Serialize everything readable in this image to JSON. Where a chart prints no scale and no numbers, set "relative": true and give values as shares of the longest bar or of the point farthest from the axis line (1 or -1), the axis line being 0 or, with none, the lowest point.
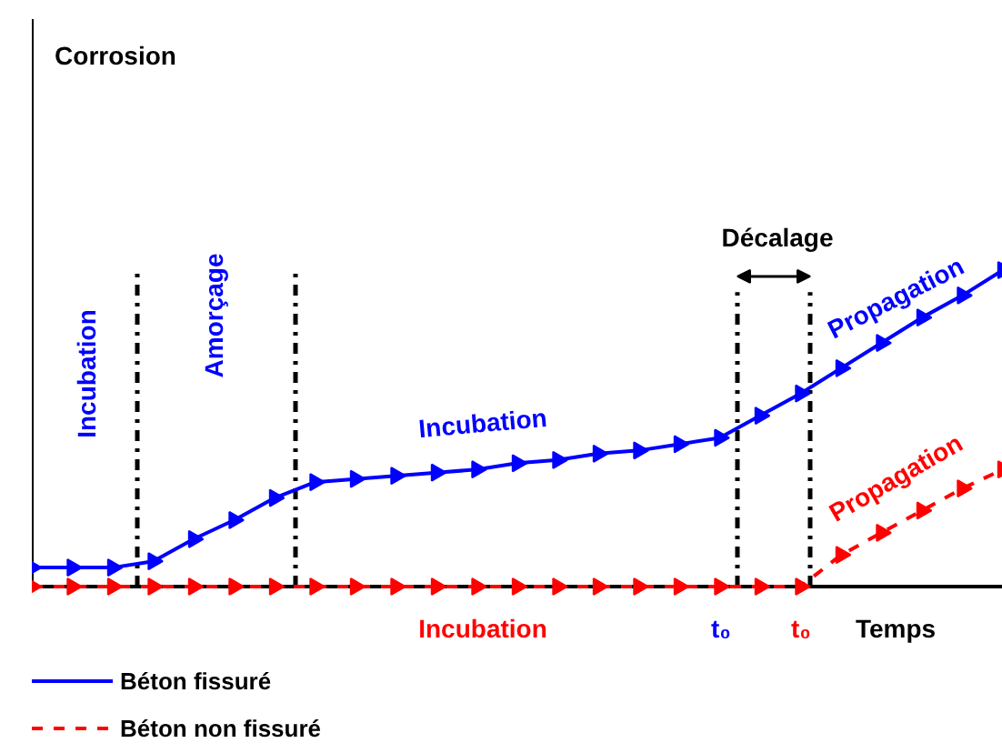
{
  "chart_data": {
    "type": "line",
    "relative": true,
    "xlabel": "Temps",
    "categories": [
      null,
      null,
      null,
      null,
      null,
      null,
      null,
      null,
      null,
      null,
      null,
      null,
      null,
      null,
      null,
      null,
      null,
      null,
      null,
      null,
      null,
      null,
      null,
      null,
      null
    ],
    "series": [
      {
        "name": "Béton fissuré",
        "color": "#0000ff",
        "marker": "triangle",
        "values": [
          0.06,
          0.06,
          0.06,
          0.08,
          0.15,
          0.21,
          0.28,
          0.33,
          0.34,
          0.35,
          0.36,
          0.37,
          0.39,
          0.4,
          0.42,
          0.43,
          0.45,
          0.47,
          0.54,
          0.61,
          0.69,
          0.77,
          0.85,
          0.92,
          1.0
        ]
      },
      {
        "name": "Béton non fissuré",
        "color": "#ff0000",
        "type": "line",
        "line_style": "dashed",
        "marker": "triangle",
        "values": [
          0,
          0,
          0,
          0,
          0,
          0,
          0,
          0,
          0,
          0,
          0,
          0,
          0,
          0,
          0,
          0,
          0,
          0,
          0,
          0,
          0.1,
          0.17,
          0.24,
          0.31,
          0.37
        ]
      }
    ],
    "annotations": [
      "Incubation",
      "Amorçage",
      "Incubation",
      "Décalage",
      "Propagation",
      "Propagation",
      "Incubation",
      "t₀",
      "t₀",
      "Corrosion"
    ],
    "legend": "bottom left",
    "grid": false
  }
}
